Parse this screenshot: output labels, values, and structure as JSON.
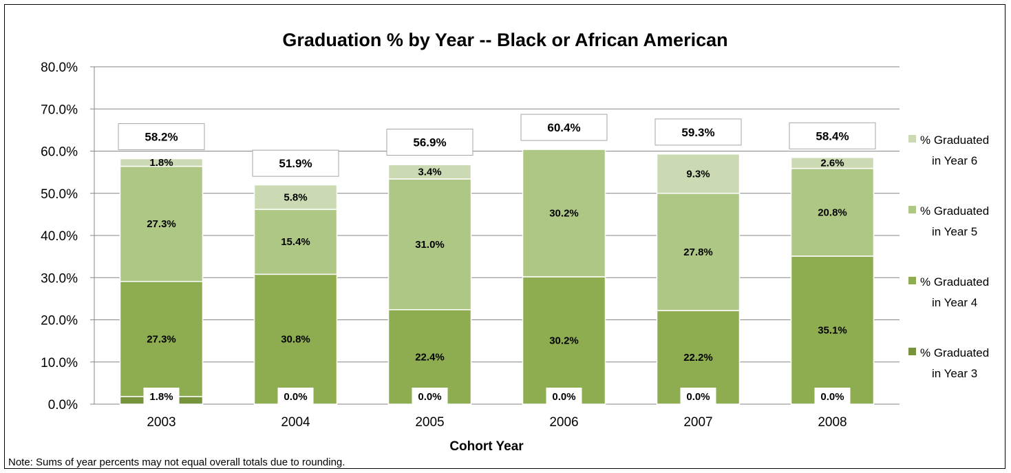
{
  "chart_data": {
    "type": "bar",
    "stacked": true,
    "title": "Graduation % by Year -- Black or African American",
    "xlabel": "Cohort Year",
    "ylabel": "",
    "ylim": [
      0,
      80
    ],
    "yticks": [
      "0.0%",
      "10.0%",
      "20.0%",
      "30.0%",
      "40.0%",
      "50.0%",
      "60.0%",
      "70.0%",
      "80.0%"
    ],
    "grid": true,
    "legend_position": "right",
    "categories": [
      "2003",
      "2004",
      "2005",
      "2006",
      "2007",
      "2008"
    ],
    "series": [
      {
        "name": "% Graduated in Year 3",
        "legend_lines": [
          "% Graduated",
          "in Year 3"
        ],
        "color": "#77933C",
        "values": [
          1.8,
          0.0,
          0.0,
          0.0,
          0.0,
          0.0
        ],
        "labels": [
          "1.8%",
          "0.0%",
          "0.0%",
          "0.0%",
          "0.0%",
          "0.0%"
        ]
      },
      {
        "name": "% Graduated in Year 4",
        "legend_lines": [
          "% Graduated",
          "in Year 4"
        ],
        "color": "#8EAD51",
        "values": [
          27.3,
          30.8,
          22.4,
          30.2,
          22.2,
          35.1
        ],
        "labels": [
          "27.3%",
          "30.8%",
          "22.4%",
          "30.2%",
          "22.2%",
          "35.1%"
        ]
      },
      {
        "name": "% Graduated in Year 5",
        "legend_lines": [
          "% Graduated",
          "in Year 5"
        ],
        "color": "#AFC785",
        "values": [
          27.3,
          15.4,
          31.0,
          30.2,
          27.8,
          20.8
        ],
        "labels": [
          "27.3%",
          "15.4%",
          "31.0%",
          "30.2%",
          "27.8%",
          "20.8%"
        ]
      },
      {
        "name": "% Graduated in Year 6",
        "legend_lines": [
          "% Graduated",
          "in Year 6"
        ],
        "color": "#CBDAB2",
        "values": [
          1.8,
          5.8,
          3.4,
          0.0,
          9.3,
          2.6
        ],
        "labels": [
          "1.8%",
          "5.8%",
          "3.4%",
          "",
          "9.3%",
          "2.6%"
        ]
      }
    ],
    "totals": [
      58.2,
      51.9,
      56.9,
      60.4,
      59.3,
      58.4
    ],
    "total_labels": [
      "58.2%",
      "51.9%",
      "56.9%",
      "60.4%",
      "59.3%",
      "58.4%"
    ]
  },
  "note": "Note: Sums of year percents may not equal overall totals due to rounding."
}
